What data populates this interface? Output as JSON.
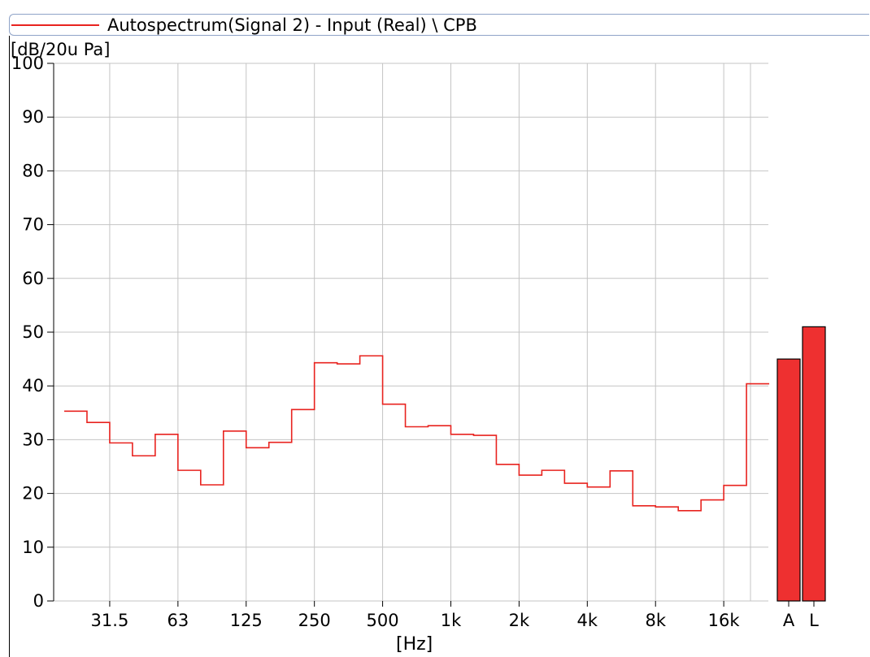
{
  "legend": {
    "label": "Autospectrum(Signal 2) - Input (Real) \\ CPB",
    "color": "#e8231f"
  },
  "chart_data": {
    "type": "line",
    "title": "",
    "ylabel": "[dB/20u Pa]",
    "xlabel": "[Hz]",
    "ylim": [
      0,
      100
    ],
    "y_ticks": [
      "0",
      "10",
      "20",
      "30",
      "40",
      "50",
      "60",
      "70",
      "80",
      "90",
      "100"
    ],
    "x_ticks": [
      "31.5",
      "63",
      "125",
      "250",
      "500",
      "1k",
      "2k",
      "4k",
      "8k",
      "16k"
    ],
    "grid": true,
    "step_style": "1/3 octave bands",
    "series": [
      {
        "bands_hz": [
          "20",
          "25",
          "31.5",
          "40",
          "50",
          "63",
          "80",
          "100",
          "125",
          "160",
          "200",
          "250",
          "315",
          "400",
          "500",
          "630",
          "800",
          "1k",
          "1.25k",
          "1.6k",
          "2k",
          "2.5k",
          "3.15k",
          "4k",
          "5k",
          "6.3k",
          "8k",
          "10k",
          "12.5k",
          "16k",
          "20k"
        ],
        "values": [
          35.3,
          33.2,
          29.4,
          27.0,
          31.0,
          24.3,
          21.6,
          31.6,
          28.5,
          29.5,
          35.6,
          44.3,
          44.1,
          45.6,
          36.6,
          32.4,
          32.6,
          31.0,
          30.8,
          25.4,
          23.4,
          24.3,
          21.9,
          21.2,
          24.2,
          17.7,
          17.5,
          16.8,
          18.8,
          21.5,
          40.4
        ]
      }
    ],
    "overall_bars": [
      {
        "label": "A",
        "value": 45.0
      },
      {
        "label": "L",
        "value": 51.0
      }
    ],
    "bar_color": "#ee3030"
  }
}
